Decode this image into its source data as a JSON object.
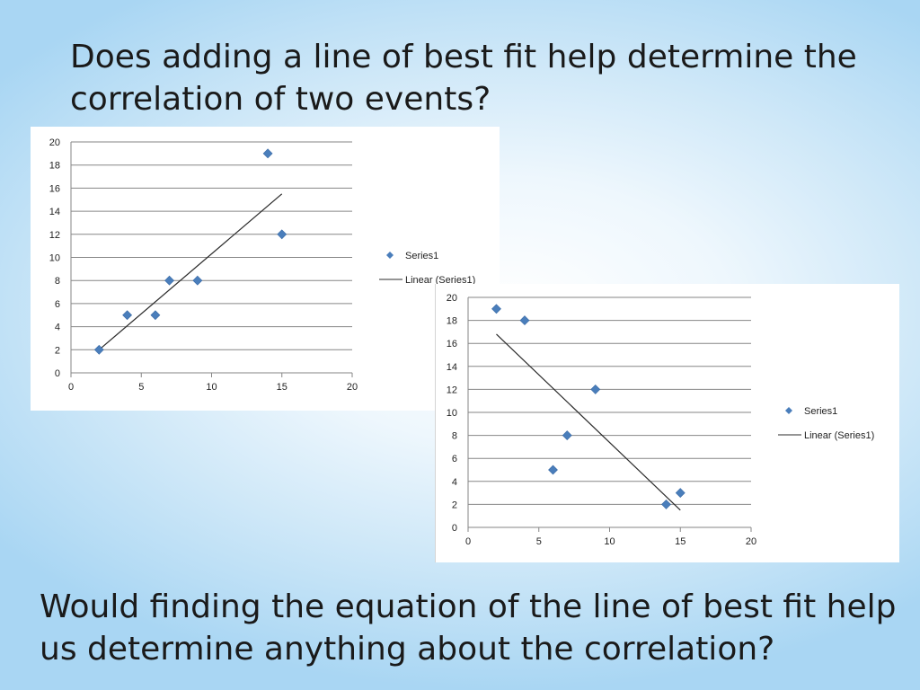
{
  "slide": {
    "title": "Does adding a line of best fit help determine the correlation of two events?",
    "footer": "Would finding the equation of the line of best fit help us determine anything about the correlation?"
  },
  "colors": {
    "marker": "#4a7ebb",
    "grid": "#868686",
    "text": "#1a1a1a"
  },
  "chart_data": [
    {
      "type": "scatter",
      "title": "",
      "xlabel": "",
      "ylabel": "",
      "xlim": [
        0,
        20
      ],
      "ylim": [
        0,
        20
      ],
      "x_ticks": [
        0,
        5,
        10,
        15,
        20
      ],
      "y_ticks": [
        0,
        2,
        4,
        6,
        8,
        10,
        12,
        14,
        16,
        18,
        20
      ],
      "grid": "horizontal",
      "legend_position": "right",
      "series": [
        {
          "name": "Series1",
          "x": [
            2,
            4,
            6,
            7,
            9,
            14,
            15
          ],
          "y": [
            2,
            5,
            5,
            8,
            8,
            19,
            12
          ]
        }
      ],
      "trendline": {
        "name": "Linear (Series1)",
        "x": [
          2,
          15
        ],
        "y": [
          2,
          15.5
        ]
      }
    },
    {
      "type": "scatter",
      "title": "",
      "xlabel": "",
      "ylabel": "",
      "xlim": [
        0,
        20
      ],
      "ylim": [
        0,
        20
      ],
      "x_ticks": [
        0,
        5,
        10,
        15,
        20
      ],
      "y_ticks": [
        0,
        2,
        4,
        6,
        8,
        10,
        12,
        14,
        16,
        18,
        20
      ],
      "grid": "horizontal",
      "legend_position": "right",
      "series": [
        {
          "name": "Series1",
          "x": [
            2,
            4,
            6,
            7,
            9,
            14,
            15
          ],
          "y": [
            19,
            18,
            5,
            8,
            12,
            2,
            3
          ]
        }
      ],
      "trendline": {
        "name": "Linear (Series1)",
        "x": [
          2,
          15
        ],
        "y": [
          16.8,
          1.5
        ]
      }
    }
  ]
}
